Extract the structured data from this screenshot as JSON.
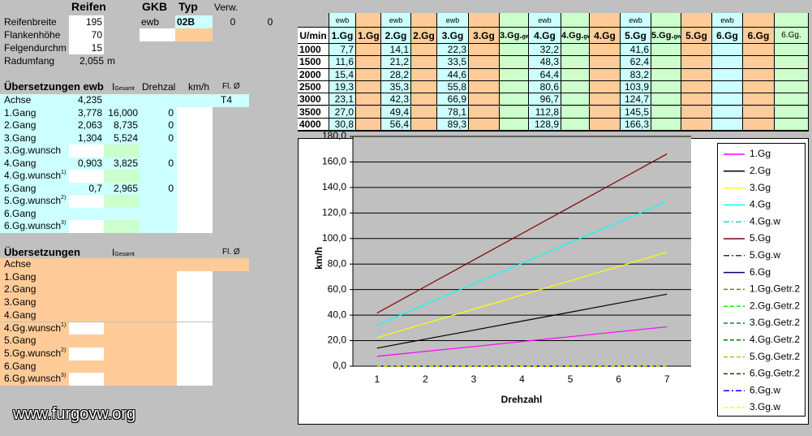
{
  "tire": {
    "title": "Reifen",
    "rows": [
      {
        "label": "Reifenbreite",
        "value": "195"
      },
      {
        "label": "Flankenhöhe",
        "value": "70"
      },
      {
        "label": "Felgendurchm",
        "value": "15"
      }
    ],
    "radumfang": {
      "label": "Radumfang",
      "value": "2,055",
      "unit": "m"
    }
  },
  "gearbox": {
    "gkb_title": "GKB",
    "typ_title": "Typ",
    "verw_title": "Verw.",
    "gkb": "ewb",
    "typ": "02B",
    "verw": [
      "0",
      "0"
    ]
  },
  "ewb": {
    "title": "Übersetzungen ewb",
    "i": "I",
    "i_sub": "Gesamt",
    "drehzahl": "Drehzal",
    "kmh": "km/h",
    "fl": "Fl. Ø",
    "rows": [
      {
        "label": "Achse",
        "ratio": "4,235",
        "fl": "T4"
      },
      {
        "label": "1.Gang",
        "ratio": "3,778",
        "total": "16,000",
        "rpm": "0"
      },
      {
        "label": "2.Gang",
        "ratio": "2,063",
        "total": "8,735",
        "rpm": "0"
      },
      {
        "label": "3.Gang",
        "ratio": "1,304",
        "total": "5,524",
        "rpm": "0"
      },
      {
        "label": "3.Gg.wunsch",
        "wish": true
      },
      {
        "label": "4.Gang",
        "ratio": "0,903",
        "total": "3,825",
        "rpm": "0"
      },
      {
        "label": "4.Gg.wunsch",
        "sup": "1)",
        "wish": true
      },
      {
        "label": "5.Gang",
        "ratio": "0,7",
        "total": "2,965",
        "rpm": "0"
      },
      {
        "label": "5.Gg.wunsch",
        "sup": "2)",
        "wish": true
      },
      {
        "label": "6.Gang"
      },
      {
        "label": "6.Gg.wunsch",
        "sup": "3)",
        "wish": true
      }
    ]
  },
  "other": {
    "title": "Übersetzungen",
    "i": "I",
    "i_sub": "Gesamt",
    "fl": "Fl. Ø",
    "rows": [
      {
        "label": "Achse"
      },
      {
        "label": "1.Gang"
      },
      {
        "label": "2.Gang"
      },
      {
        "label": "3.Gang"
      },
      {
        "label": "4.Gang"
      },
      {
        "label": "4.Gg.wunsch",
        "sup": "1)",
        "wish": true
      },
      {
        "label": "5.Gang"
      },
      {
        "label": "5.Gg.wunsch",
        "sup": "2)",
        "wish": true
      },
      {
        "label": "6.Gang"
      },
      {
        "label": "6.Gg.wunsch",
        "sup": "3)",
        "wish": true
      }
    ]
  },
  "speed_table": {
    "top": [
      null,
      "ewb",
      null,
      "ewb",
      null,
      "ewb",
      null,
      null,
      "ewb",
      null,
      null,
      "ewb",
      null,
      null,
      "ewb",
      null,
      null
    ],
    "header": [
      "U/min",
      "1.Gg",
      "1.Gg",
      "2.Gg",
      "2.Gg",
      "3.Gg",
      "3.Gg",
      {
        "text": "3.Gg.",
        "sub": "gw"
      },
      "4.Gg",
      {
        "text": "4.Gg.",
        "sub": "gw"
      },
      "4.Gg",
      "5.Gg",
      {
        "text": "5.Gg.",
        "sub": "gw"
      },
      "5.Gg",
      "6.Gg",
      "6.Gg",
      {
        "text": "6.Gg."
      }
    ],
    "column_colors": [
      "#ffffff",
      "#ccffff",
      "#ffcc99",
      "#ccffff",
      "#ffcc99",
      "#ccffff",
      "#ffcc99",
      "#ccffcc",
      "#ccffff",
      "#ccffcc",
      "#ffcc99",
      "#ccffff",
      "#ccffcc",
      "#ffcc99",
      "#ccffff",
      "#ffcc99",
      "#ccffcc"
    ],
    "rows": [
      [
        "1000",
        "7,7",
        null,
        "14,1",
        null,
        "22,3",
        null,
        null,
        "32,2",
        null,
        null,
        "41,6",
        null,
        null,
        null,
        null,
        null
      ],
      [
        "1500",
        "11,6",
        null,
        "21,2",
        null,
        "33,5",
        null,
        null,
        "48,3",
        null,
        null,
        "62,4",
        null,
        null,
        null,
        null,
        null
      ],
      [
        "2000",
        "15,4",
        null,
        "28,2",
        null,
        "44,6",
        null,
        null,
        "64,4",
        null,
        null,
        "83,2",
        null,
        null,
        null,
        null,
        null
      ],
      [
        "2500",
        "19,3",
        null,
        "35,3",
        null,
        "55,8",
        null,
        null,
        "80,6",
        null,
        null,
        "103,9",
        null,
        null,
        null,
        null,
        null
      ],
      [
        "3000",
        "23,1",
        null,
        "42,3",
        null,
        "66,9",
        null,
        null,
        "96,7",
        null,
        null,
        "124,7",
        null,
        null,
        null,
        null,
        null
      ],
      [
        "3500",
        "27,0",
        null,
        "49,4",
        null,
        "78,1",
        null,
        null,
        "112,8",
        null,
        null,
        "145,5",
        null,
        null,
        null,
        null,
        null
      ],
      [
        "4000",
        "30,8",
        null,
        "56,4",
        null,
        "89,3",
        null,
        null,
        "128,9",
        null,
        null,
        "166,3",
        null,
        null,
        null,
        null,
        null
      ]
    ]
  },
  "watermark": "www.furgovw.org",
  "chart_data": {
    "type": "line",
    "x_label": "Drehzahl",
    "y_label": "km/h",
    "categories": [
      1,
      2,
      3,
      4,
      5,
      6,
      7
    ],
    "ylim": [
      0,
      180
    ],
    "yticks": [
      {
        "value": 0,
        "label": "0,0"
      },
      {
        "value": 20,
        "label": "20,0"
      },
      {
        "value": 40,
        "label": "40,0"
      },
      {
        "value": 60,
        "label": "60,0"
      },
      {
        "value": 80,
        "label": "80,0"
      },
      {
        "value": 100,
        "label": "100,0"
      },
      {
        "value": 120,
        "label": "120,0"
      },
      {
        "value": 140,
        "label": "140,0"
      },
      {
        "value": 160,
        "label": "160,0"
      },
      {
        "value": 180,
        "label": "180,0"
      }
    ],
    "grid": true,
    "legend": "right",
    "series": [
      {
        "name": "1.Gg",
        "color": "#ff00ff",
        "dash": "solid",
        "values": [
          7.7,
          11.6,
          15.4,
          19.3,
          23.1,
          27.0,
          30.8
        ]
      },
      {
        "name": "2.Gg",
        "color": "#000000",
        "dash": "solid",
        "values": [
          14.1,
          21.2,
          28.2,
          35.3,
          42.3,
          49.4,
          56.4
        ]
      },
      {
        "name": "3.Gg",
        "color": "#ffff00",
        "dash": "solid",
        "values": [
          22.3,
          33.5,
          44.6,
          55.8,
          66.9,
          78.1,
          89.3
        ]
      },
      {
        "name": "4.Gg",
        "color": "#00ffff",
        "dash": "solid",
        "values": [
          32.2,
          48.3,
          64.4,
          80.6,
          96.7,
          112.8,
          128.9
        ]
      },
      {
        "name": "4.Gg.w",
        "color": "#33cccc",
        "dash": "dashdot",
        "values": [
          0,
          0,
          0,
          0,
          0,
          0,
          0
        ]
      },
      {
        "name": "5.Gg",
        "color": "#800000",
        "dash": "solid",
        "values": [
          41.6,
          62.4,
          83.2,
          103.9,
          124.7,
          145.5,
          166.3
        ]
      },
      {
        "name": "5.Gg.w",
        "color": "#800080",
        "dash": "dashdot",
        "values": [
          0,
          0,
          0,
          0,
          0,
          0,
          0
        ]
      },
      {
        "name": "6.Gg",
        "color": "#000080",
        "dash": "solid",
        "values": [
          0,
          0,
          0,
          0,
          0,
          0,
          0
        ]
      },
      {
        "name": "1.Gg.Getr.2",
        "color": "#808000",
        "dash": "dashed",
        "values": [
          0,
          0,
          0,
          0,
          0,
          0,
          0
        ]
      },
      {
        "name": "2.Gg.Getr.2",
        "color": "#00ff00",
        "dash": "dashed",
        "values": [
          0,
          0,
          0,
          0,
          0,
          0,
          0
        ]
      },
      {
        "name": "3.Gg.Getr.2",
        "color": "#008080",
        "dash": "dashed",
        "values": [
          0,
          0,
          0,
          0,
          0,
          0,
          0
        ]
      },
      {
        "name": "4.Gg.Getr.2",
        "color": "#008000",
        "dash": "dashed",
        "values": [
          0,
          0,
          0,
          0,
          0,
          0,
          0
        ]
      },
      {
        "name": "5.Gg.Getr.2",
        "color": "#99cc00",
        "dash": "dashed",
        "values": [
          0,
          0,
          0,
          0,
          0,
          0,
          0
        ]
      },
      {
        "name": "6.Gg.Getr.2",
        "color": "#333300",
        "dash": "dashed",
        "values": [
          0,
          0,
          0,
          0,
          0,
          0,
          0
        ]
      },
      {
        "name": "6.Gg.w",
        "color": "#0000ff",
        "dash": "dashdot",
        "values": [
          0,
          0,
          0,
          0,
          0,
          0,
          0
        ]
      },
      {
        "name": "3.Gg.w",
        "color": "#ffff00",
        "dash": "dashed",
        "values": [
          0,
          0,
          0,
          0,
          0,
          0,
          0
        ]
      }
    ]
  }
}
